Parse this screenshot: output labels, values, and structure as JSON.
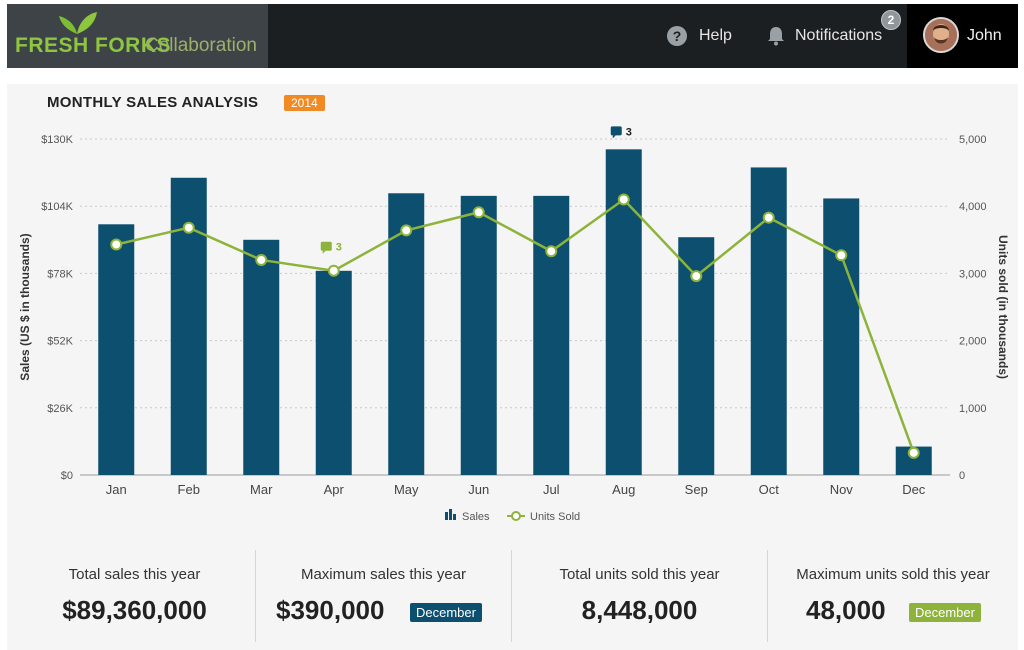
{
  "header": {
    "brand_name": "FRESH FORKS",
    "brand_sub": "Collaboration",
    "help_label": "Help",
    "notifications_label": "Notifications",
    "notifications_count": "2",
    "user_name": "John"
  },
  "chart": {
    "title": "MONTHLY SALES ANALYSIS",
    "year": "2014",
    "comment_count": "3",
    "legend_sales": "Sales",
    "legend_units": "Units Sold"
  },
  "colors": {
    "bar": "#0d4f6e",
    "line": "#8db33a",
    "accent_orange": "#f08a24"
  },
  "chart_data": {
    "type": "bar",
    "categories": [
      "Jan",
      "Feb",
      "Mar",
      "Apr",
      "May",
      "Jun",
      "Jul",
      "Aug",
      "Sep",
      "Oct",
      "Nov",
      "Dec"
    ],
    "series": [
      {
        "name": "Sales",
        "type": "bar",
        "axis": "left",
        "values": [
          97,
          115,
          91,
          79,
          109,
          108,
          108,
          126,
          92,
          119,
          107,
          11
        ]
      },
      {
        "name": "Units Sold",
        "type": "line",
        "axis": "right",
        "values": [
          3430,
          3680,
          3200,
          3040,
          3640,
          3910,
          3330,
          4100,
          2960,
          3830,
          3270,
          330
        ]
      }
    ],
    "ylabel": "Sales (US $ in thousands)",
    "y2label": "Units sold (in thousands)",
    "ylim": [
      0,
      130
    ],
    "y2lim": [
      0,
      5000
    ],
    "yticks": [
      "$0",
      "$26K",
      "$52K",
      "$78K",
      "$104K",
      "$130K"
    ],
    "y2ticks": [
      "0",
      "1,000",
      "2,000",
      "3,000",
      "4,000",
      "5,000"
    ],
    "grid": true,
    "legend": "bottom-center",
    "annotations": [
      {
        "category": "Apr",
        "series": "Units Sold",
        "label": "3"
      },
      {
        "category": "Aug",
        "series": "Sales",
        "label": "3"
      }
    ]
  },
  "stats": [
    {
      "label": "Total sales this year",
      "value": "$89,360,000",
      "tag": ""
    },
    {
      "label": "Maximum sales this year",
      "value": "$390,000",
      "tag": "December"
    },
    {
      "label": "Total units sold this year",
      "value": "8,448,000",
      "tag": ""
    },
    {
      "label": "Maximum units sold this year",
      "value": "48,000",
      "tag": "December"
    }
  ]
}
